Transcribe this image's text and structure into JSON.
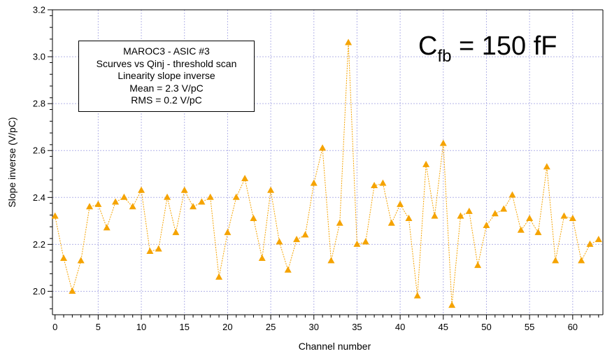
{
  "chart_data": {
    "type": "line",
    "title": "",
    "xlabel": "Channel number",
    "ylabel": "Slope inverse (V/pC)",
    "xlim": [
      -0.3,
      63.5
    ],
    "ylim": [
      1.9,
      3.2
    ],
    "x_ticks": [
      "0",
      "5",
      "10",
      "15",
      "20",
      "25",
      "30",
      "35",
      "40",
      "45",
      "50",
      "55",
      "60"
    ],
    "y_ticks": [
      "2.0",
      "2.2",
      "2.4",
      "2.6",
      "2.8",
      "3.0",
      "3.2"
    ],
    "grid": true,
    "series_color": "#f5a300",
    "marker": "triangle",
    "x": [
      0,
      1,
      2,
      3,
      4,
      5,
      6,
      7,
      8,
      9,
      10,
      11,
      12,
      13,
      14,
      15,
      16,
      17,
      18,
      19,
      20,
      21,
      22,
      23,
      24,
      25,
      26,
      27,
      28,
      29,
      30,
      31,
      32,
      33,
      34,
      35,
      36,
      37,
      38,
      39,
      40,
      41,
      42,
      43,
      44,
      45,
      46,
      47,
      48,
      49,
      50,
      51,
      52,
      53,
      54,
      55,
      56,
      57,
      58,
      59,
      60,
      61,
      62,
      63
    ],
    "y": [
      2.32,
      2.14,
      2.0,
      2.13,
      2.36,
      2.37,
      2.27,
      2.38,
      2.4,
      2.36,
      2.43,
      2.17,
      2.18,
      2.4,
      2.25,
      2.43,
      2.36,
      2.38,
      2.4,
      2.06,
      2.25,
      2.4,
      2.48,
      2.31,
      2.14,
      2.43,
      2.21,
      2.09,
      2.22,
      2.24,
      2.46,
      2.61,
      2.13,
      2.29,
      3.06,
      2.2,
      2.21,
      2.45,
      2.46,
      2.29,
      2.37,
      2.31,
      1.98,
      2.54,
      2.32,
      2.63,
      1.94,
      2.32,
      2.34,
      2.11,
      2.28,
      2.33,
      2.35,
      2.41,
      2.26,
      2.31,
      2.25,
      2.53,
      2.13,
      2.32,
      2.31,
      2.13,
      2.2,
      2.22
    ]
  },
  "legend": {
    "lines": [
      "MAROC3 - ASIC #3",
      "Scurves vs Qinj - threshold scan",
      "Linearity slope inverse",
      "Mean = 2.3 V/pC",
      "RMS = 0.2 V/pC"
    ]
  },
  "annotation": {
    "main": "C",
    "sub": "fb",
    "rest": " = 150 fF"
  }
}
